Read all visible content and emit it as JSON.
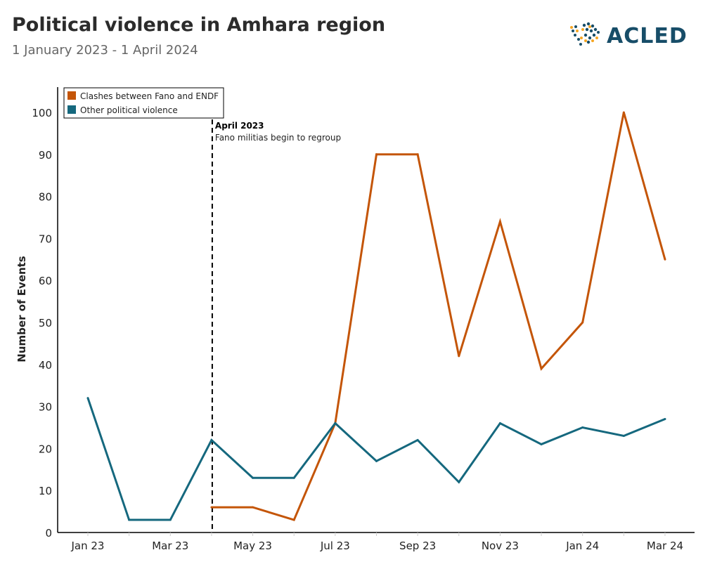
{
  "header": {
    "title": "Political violence in Amhara region",
    "subtitle": "1 January 2023 - 1 April 2024",
    "logo_text": "ACLED"
  },
  "chart_data": {
    "type": "line",
    "title": "Political violence in Amhara region",
    "subtitle": "1 January 2023 - 1 April 2024",
    "xlabel": "",
    "ylabel": "Number of Events",
    "ylim": [
      0,
      100
    ],
    "yticks": [
      0,
      10,
      20,
      30,
      40,
      50,
      60,
      70,
      80,
      90,
      100
    ],
    "categories": [
      "Jan 23",
      "Feb 23",
      "Mar 23",
      "Apr 23",
      "May 23",
      "Jun 23",
      "Jul 23",
      "Aug 23",
      "Sep 23",
      "Oct 23",
      "Nov 23",
      "Dec 23",
      "Jan 24",
      "Feb 24",
      "Mar 24"
    ],
    "xtick_labels": [
      "Jan 23",
      "Mar 23",
      "May 23",
      "Jul 23",
      "Sep 23",
      "Nov 23",
      "Jan 24",
      "Mar 24"
    ],
    "legend_position": "top-left",
    "grid": false,
    "series": [
      {
        "name": "Clashes between Fano and ENDF",
        "color": "#c45508",
        "values": [
          null,
          null,
          null,
          6,
          6,
          3,
          26,
          90,
          90,
          42,
          74,
          39,
          50,
          100,
          65
        ]
      },
      {
        "name": "Other political violence",
        "color": "#15687e",
        "values": [
          32,
          3,
          3,
          22,
          13,
          13,
          26,
          17,
          22,
          12,
          26,
          21,
          25,
          23,
          27
        ]
      }
    ],
    "annotation": {
      "category": "Apr 23",
      "title": "April 2023",
      "text": "Fano militias begin to regroup"
    }
  }
}
